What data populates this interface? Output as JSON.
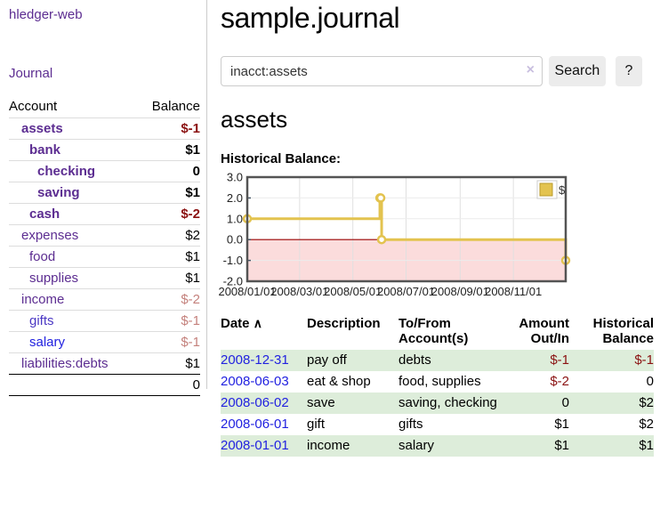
{
  "app": {
    "brand": "hledger-web",
    "nav_journal": "Journal"
  },
  "sidebar": {
    "headers": {
      "account": "Account",
      "balance": "Balance"
    },
    "accounts": [
      {
        "name": "assets",
        "balance": "$-1"
      },
      {
        "name": "bank",
        "balance": "$1"
      },
      {
        "name": "checking",
        "balance": "0"
      },
      {
        "name": "saving",
        "balance": "$1"
      },
      {
        "name": "cash",
        "balance": "$-2"
      },
      {
        "name": "expenses",
        "balance": "$2"
      },
      {
        "name": "food",
        "balance": "$1"
      },
      {
        "name": "supplies",
        "balance": "$1"
      },
      {
        "name": "income",
        "balance": "$-2"
      },
      {
        "name": "gifts",
        "balance": "$-1"
      },
      {
        "name": "salary",
        "balance": "$-1"
      },
      {
        "name": "liabilities:debts",
        "balance": "$1"
      }
    ],
    "total": "0"
  },
  "main": {
    "title": "sample.journal",
    "search": {
      "value": "inacct:assets",
      "clear_icon": "×",
      "button_label": "Search",
      "help_label": "?"
    },
    "account_heading": "assets",
    "chart_caption": "Historical Balance:"
  },
  "chart_data": {
    "type": "line",
    "title": "Historical Balance",
    "legend": "$",
    "legend_position": "top-right",
    "grid": true,
    "step": true,
    "series": [
      {
        "name": "$",
        "points": [
          [
            "2008-01-01",
            1
          ],
          [
            "2008-06-01",
            2
          ],
          [
            "2008-06-02",
            2
          ],
          [
            "2008-06-03",
            0
          ],
          [
            "2008-12-31",
            -1
          ]
        ]
      }
    ],
    "x_ticks": [
      "2008/01/01",
      "2008/03/01",
      "2008/05/01",
      "2008/07/01",
      "2008/09/01",
      "2008/11/01"
    ],
    "y_ticks": [
      "3.0",
      "2.0",
      "1.0",
      "0.0",
      "-1.0",
      "-2.0"
    ],
    "ylim": [
      -2,
      3
    ],
    "x_start": "2008-01-01",
    "x_days": 365,
    "colors": {
      "line": "#e3c34f",
      "marker_fill": "#ffffff",
      "negative_fill": "#fbdcdc",
      "zero_line": "#990000",
      "grid": "#e0e0e0",
      "frame": "#545454",
      "tick": "#445566"
    }
  },
  "register": {
    "headers": {
      "date": "Date",
      "sort_arrow": "∧",
      "description": "Description",
      "accounts": "To/From Account(s)",
      "amount": "Amount Out/In",
      "balance": "Historical Balance"
    },
    "rows": [
      {
        "date": "2008-12-31",
        "description": "pay off",
        "accounts": "debts",
        "amount": "$-1",
        "balance": "$-1"
      },
      {
        "date": "2008-06-03",
        "description": "eat & shop",
        "accounts": "food, supplies",
        "amount": "$-2",
        "balance": "0"
      },
      {
        "date": "2008-06-02",
        "description": "save",
        "accounts": "saving, checking",
        "amount": "0",
        "balance": "$2"
      },
      {
        "date": "2008-06-01",
        "description": "gift",
        "accounts": "gifts",
        "amount": "$1",
        "balance": "$2"
      },
      {
        "date": "2008-01-01",
        "description": "income",
        "accounts": "salary",
        "amount": "$1",
        "balance": "$1"
      }
    ]
  }
}
